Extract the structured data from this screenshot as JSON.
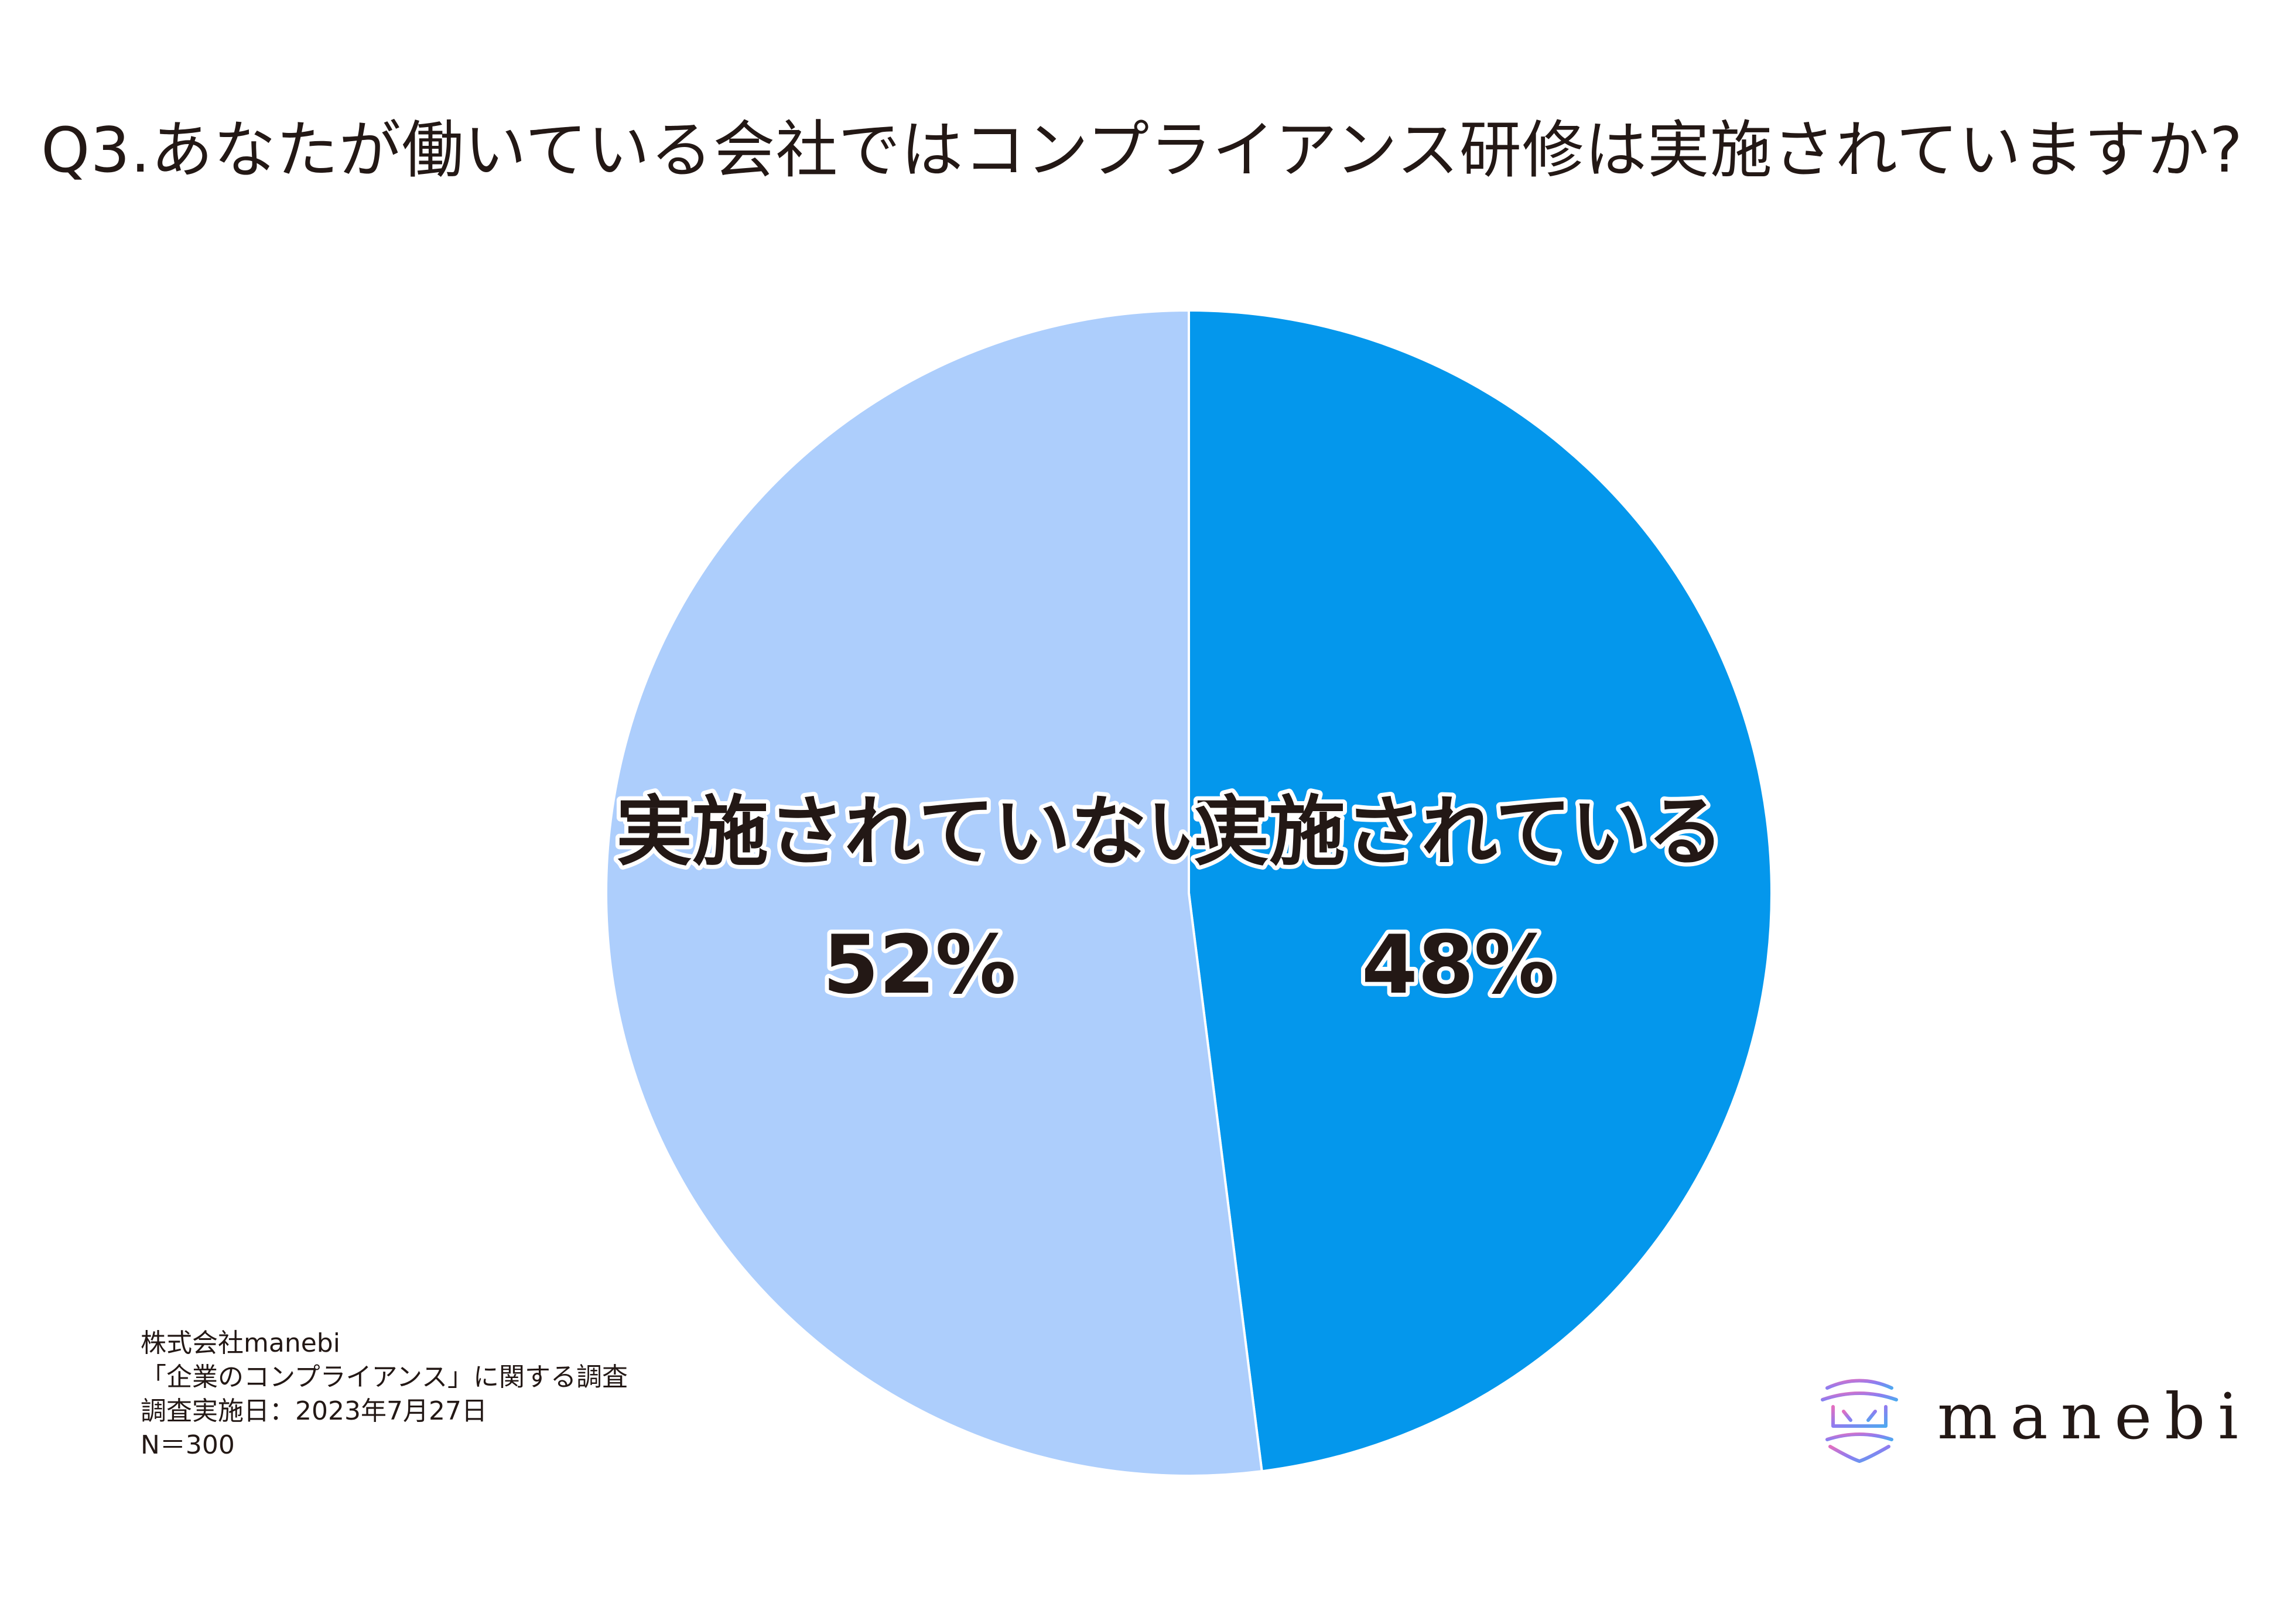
{
  "title": "Q3.あなたが働いている会社ではコンプライアンス研修は実施されていますか?",
  "chart_data": {
    "type": "pie",
    "slices": [
      {
        "label": "実施されている",
        "value": 48,
        "display": "48%",
        "color": "#0497EC"
      },
      {
        "label": "実施されていない",
        "value": 52,
        "display": "52%",
        "color": "#ADCEFC"
      }
    ],
    "start": "12 o'clock",
    "direction": "clockwise"
  },
  "footnote": {
    "lines": [
      "株式会社manebi",
      "「企業のコンプライアンス」に関する調査",
      "調査実施日：2023年7月27日",
      "N＝300"
    ]
  },
  "logo": {
    "text": "manebi",
    "gradient": [
      "#E36FC0",
      "#8F7CF0",
      "#4FA8F0"
    ]
  }
}
